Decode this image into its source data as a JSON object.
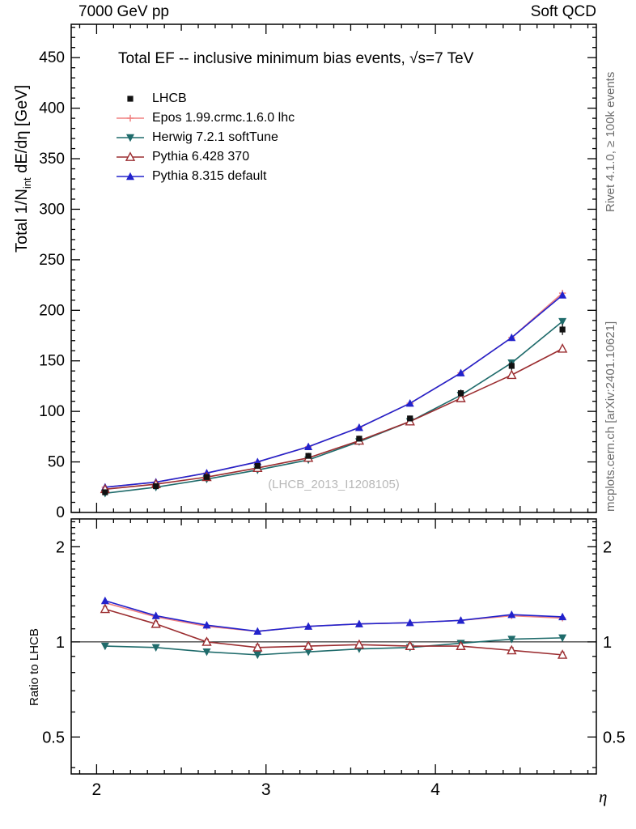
{
  "header": {
    "left": "7000 GeV pp",
    "right": "Soft QCD"
  },
  "side_notes": {
    "top_right": "Rivet 4.1.0, ≥ 100k events",
    "bottom_right": "mcplots.cern.ch [arXiv:2401.10621]"
  },
  "main_panel": {
    "title": "Total EF -- inclusive minimum bias events, √s=7 TeV",
    "watermark": "(LHCB_2013_I1208105)",
    "ylabel_pre": "Total 1/N",
    "ylabel_sub": "int",
    "ylabel_post": "  dE/dη [GeV]",
    "xlabel": "η"
  },
  "ratio_panel": {
    "ylabel": "Ratio to LHCB"
  },
  "chart_data": {
    "type": "line",
    "x": [
      2.05,
      2.35,
      2.65,
      2.95,
      3.25,
      3.55,
      3.85,
      4.15,
      4.45,
      4.75
    ],
    "xlim": [
      1.85,
      4.95
    ],
    "xticks": [
      2,
      3,
      4
    ],
    "xlabel": "η",
    "main": {
      "title": "Total EF -- inclusive minimum bias events, √s=7 TeV",
      "ylabel": "Total 1/N_int dE/dη [GeV]",
      "ylim": [
        0,
        483
      ],
      "ytick_step": 50,
      "grid": false,
      "legend_position": "top-left",
      "series": [
        {
          "name": "LHCB",
          "marker": "square-filled",
          "color": "#111111",
          "line": false,
          "values": [
            20,
            26,
            35,
            46,
            56,
            73,
            93,
            118,
            145,
            181
          ]
        },
        {
          "name": "Epos 1.99.crmc.1.6.0 lhc",
          "marker": "cross-open",
          "color": "#f08080",
          "values": [
            25,
            30,
            39,
            50,
            65,
            84,
            108,
            138,
            173,
            217
          ]
        },
        {
          "name": "Herwig 7.2.1 softTune",
          "marker": "triangle-down-filled",
          "color": "#1f6b6b",
          "values": [
            19,
            25,
            33,
            42,
            52,
            70,
            90,
            116,
            148,
            189
          ]
        },
        {
          "name": "Pythia 6.428 370",
          "marker": "triangle-up-open",
          "color": "#9b2d30",
          "values": [
            23,
            28,
            35,
            44,
            54,
            71,
            90,
            113,
            136,
            162
          ]
        },
        {
          "name": "Pythia 8.315 default",
          "marker": "triangle-up-filled",
          "color": "#2222cc",
          "values": [
            25,
            30,
            39,
            50,
            65,
            84,
            108,
            138,
            173,
            215
          ]
        }
      ]
    },
    "ratio": {
      "ylabel": "Ratio to LHCB",
      "yscale": "log",
      "ylim": [
        0.382,
        2.45
      ],
      "yticks": [
        0.5,
        1,
        2
      ],
      "reference": 1,
      "series": [
        {
          "name": "Epos 1.99.crmc.1.6.0 lhc",
          "values": [
            1.33,
            1.2,
            1.12,
            1.08,
            1.12,
            1.14,
            1.15,
            1.17,
            1.21,
            1.19
          ]
        },
        {
          "name": "Herwig 7.2.1 softTune",
          "values": [
            0.97,
            0.96,
            0.93,
            0.91,
            0.93,
            0.95,
            0.96,
            0.99,
            1.02,
            1.03
          ]
        },
        {
          "name": "Pythia 6.428 370",
          "error": 0.02,
          "values": [
            1.27,
            1.14,
            1.0,
            0.96,
            0.97,
            0.98,
            0.97,
            0.97,
            0.94,
            0.91
          ]
        },
        {
          "name": "Pythia 8.315 default",
          "values": [
            1.35,
            1.21,
            1.13,
            1.08,
            1.12,
            1.14,
            1.15,
            1.17,
            1.22,
            1.2
          ]
        }
      ]
    }
  }
}
